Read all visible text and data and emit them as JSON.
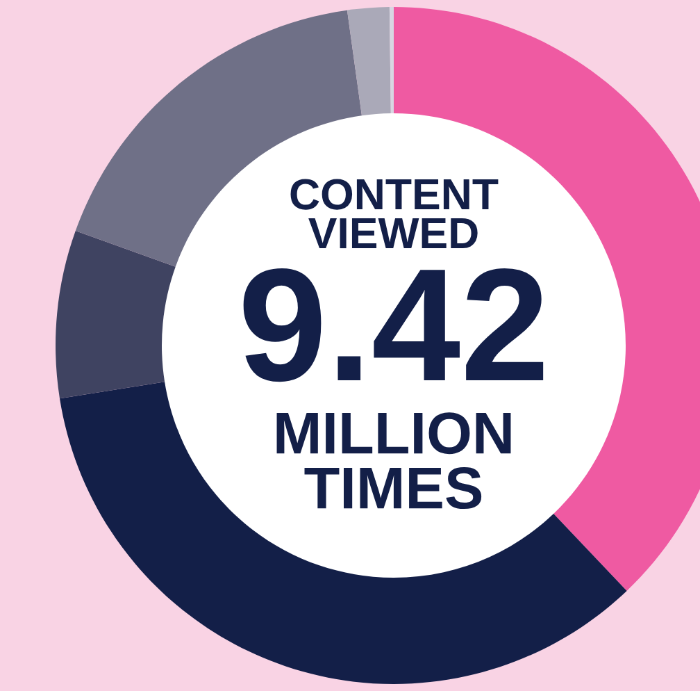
{
  "chart_data": {
    "type": "donut",
    "categories": [
      null,
      null,
      null,
      null,
      null,
      null
    ],
    "values": [
      37.9,
      34.6,
      8.0,
      17.3,
      2.0,
      0.2
    ],
    "colors": [
      "#ef5aa2",
      "#131f48",
      "#3f4361",
      "#6f7087",
      "#aaa9b8",
      "#d8d6e2"
    ],
    "annotations": [
      "CONTENT\nVIEWED",
      "9.42",
      "MILLION\nTIMES"
    ]
  }
}
